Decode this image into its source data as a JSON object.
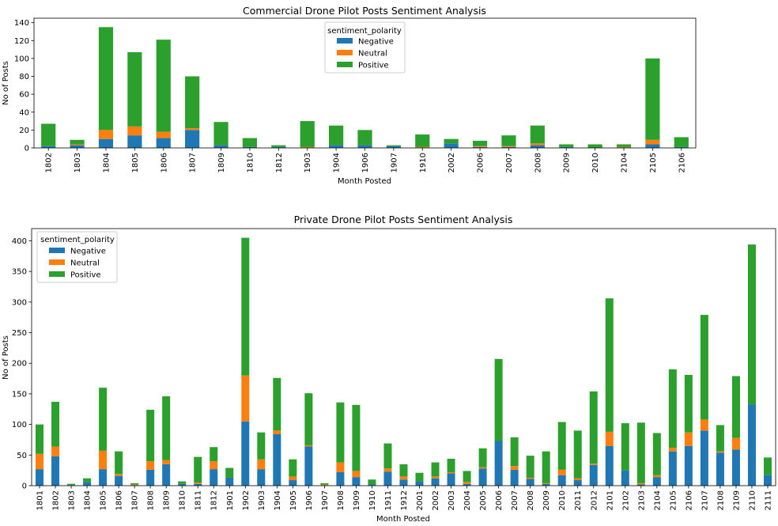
{
  "chart_data": [
    {
      "type": "bar",
      "stacked": true,
      "title": "Commercial Drone Pilot Posts Sentiment Analysis",
      "xlabel": "Month Posted",
      "ylabel": "No of Posts",
      "ylim": [
        0,
        145
      ],
      "yticks": [
        0,
        20,
        40,
        60,
        80,
        100,
        120,
        140
      ],
      "grid": false,
      "legend": {
        "title": "sentiment_polarity",
        "placement": "top-center"
      },
      "categories": [
        "1802",
        "1803",
        "1804",
        "1805",
        "1806",
        "1807",
        "1809",
        "1810",
        "1812",
        "1903",
        "1904",
        "1906",
        "1907",
        "1910",
        "2002",
        "2006",
        "2007",
        "2008",
        "2009",
        "2010",
        "2104",
        "2105",
        "2106"
      ],
      "series": [
        {
          "name": "Negative",
          "color": "#1f77b4",
          "values": [
            2,
            3,
            10,
            14,
            11,
            20,
            3,
            1,
            1,
            0,
            3,
            3,
            2,
            0,
            5,
            1,
            1,
            3,
            1,
            0,
            0,
            4,
            1
          ]
        },
        {
          "name": "Neutral",
          "color": "#ff7f0e",
          "values": [
            0,
            1,
            10,
            10,
            7,
            2,
            0,
            0,
            0,
            1,
            0,
            0,
            0,
            1,
            0,
            1,
            1,
            2,
            0,
            0,
            1,
            5,
            0
          ]
        },
        {
          "name": "Positive",
          "color": "#2ca02c",
          "values": [
            25,
            5,
            115,
            83,
            103,
            58,
            26,
            10,
            2,
            29,
            22,
            17,
            1,
            14,
            5,
            6,
            12,
            20,
            3,
            4,
            3,
            91,
            11
          ]
        }
      ]
    },
    {
      "type": "bar",
      "stacked": true,
      "title": "Private Drone Pilot Posts Sentiment Analysis",
      "xlabel": "Month Posted",
      "ylabel": "No of Posts",
      "ylim": [
        0,
        420
      ],
      "yticks": [
        0,
        50,
        100,
        150,
        200,
        250,
        300,
        350,
        400
      ],
      "grid": false,
      "legend": {
        "title": "sentiment_polarity",
        "placement": "top-left"
      },
      "categories": [
        "1801",
        "1802",
        "1803",
        "1804",
        "1805",
        "1806",
        "1807",
        "1808",
        "1809",
        "1810",
        "1811",
        "1812",
        "1901",
        "1902",
        "1903",
        "1904",
        "1905",
        "1906",
        "1907",
        "1908",
        "1909",
        "1910",
        "1911",
        "1912",
        "2001",
        "2002",
        "2003",
        "2004",
        "2005",
        "2006",
        "2007",
        "2008",
        "2009",
        "2010",
        "2011",
        "2012",
        "2101",
        "2102",
        "2103",
        "2104",
        "2105",
        "2106",
        "2107",
        "2108",
        "2109",
        "2110",
        "2111"
      ],
      "series": [
        {
          "name": "Negative",
          "color": "#1f77b4",
          "values": [
            27,
            48,
            1,
            6,
            27,
            16,
            1,
            26,
            35,
            3,
            3,
            27,
            13,
            105,
            27,
            84,
            9,
            64,
            1,
            22,
            14,
            2,
            23,
            10,
            7,
            12,
            20,
            3,
            28,
            73,
            26,
            11,
            3,
            17,
            9,
            34,
            65,
            25,
            2,
            14,
            56,
            65,
            90,
            54,
            59,
            133,
            17
          ]
        },
        {
          "name": "Neutral",
          "color": "#ff7f0e",
          "values": [
            25,
            16,
            0,
            0,
            30,
            3,
            1,
            14,
            7,
            0,
            2,
            13,
            0,
            75,
            16,
            6,
            6,
            2,
            1,
            16,
            10,
            0,
            5,
            5,
            0,
            3,
            2,
            3,
            2,
            0,
            6,
            2,
            1,
            9,
            3,
            2,
            23,
            0,
            2,
            3,
            6,
            22,
            18,
            2,
            19,
            0,
            0
          ]
        },
        {
          "name": "Positive",
          "color": "#2ca02c",
          "values": [
            48,
            73,
            2,
            6,
            103,
            37,
            2,
            84,
            104,
            4,
            42,
            23,
            16,
            225,
            44,
            86,
            28,
            85,
            2,
            98,
            108,
            8,
            41,
            20,
            14,
            23,
            22,
            18,
            31,
            134,
            47,
            36,
            52,
            78,
            78,
            118,
            218,
            77,
            99,
            69,
            128,
            94,
            171,
            43,
            101,
            261,
            29
          ]
        }
      ]
    }
  ]
}
